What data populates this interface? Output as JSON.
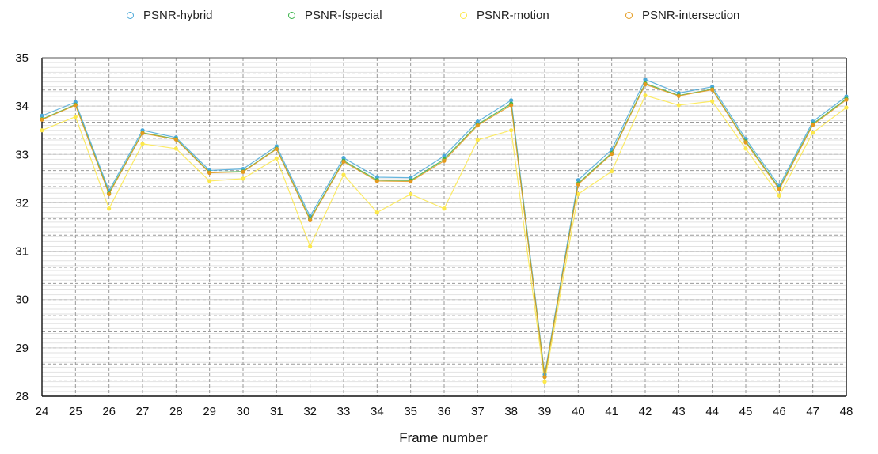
{
  "chart_data": {
    "type": "line",
    "title": "",
    "xlabel": "Frame number",
    "ylabel": "",
    "x": [
      24,
      25,
      26,
      27,
      28,
      29,
      30,
      31,
      32,
      33,
      34,
      35,
      36,
      37,
      38,
      39,
      40,
      41,
      42,
      43,
      44,
      45,
      46,
      47,
      48
    ],
    "ylim": [
      28,
      35
    ],
    "yticks": [
      28,
      29,
      30,
      31,
      32,
      33,
      34,
      35
    ],
    "grid": true,
    "legend_position": "top",
    "series": [
      {
        "name": "PSNR-hybrid",
        "color": "#4aa8d8",
        "values": [
          33.8,
          34.08,
          32.25,
          33.5,
          33.35,
          32.67,
          32.7,
          33.17,
          31.72,
          32.93,
          32.53,
          32.52,
          32.97,
          33.68,
          34.12,
          28.45,
          32.47,
          33.1,
          34.55,
          34.27,
          34.4,
          33.32,
          32.35,
          33.68,
          34.2
        ]
      },
      {
        "name": "PSNR-fspecial",
        "color": "#3cb44b",
        "values": [
          33.73,
          34.03,
          32.2,
          33.45,
          33.32,
          32.63,
          32.65,
          33.12,
          31.66,
          32.87,
          32.47,
          32.46,
          32.9,
          33.62,
          34.05,
          28.4,
          32.4,
          33.03,
          34.47,
          34.22,
          34.35,
          33.27,
          32.3,
          33.63,
          34.15
        ]
      },
      {
        "name": "PSNR-motion",
        "color": "#fce84a",
        "values": [
          33.5,
          33.78,
          31.88,
          33.22,
          33.12,
          32.45,
          32.5,
          32.92,
          31.1,
          32.58,
          31.8,
          32.18,
          31.88,
          33.3,
          33.5,
          28.3,
          32.18,
          32.65,
          34.22,
          34.02,
          34.1,
          33.12,
          32.15,
          33.45,
          33.97
        ]
      },
      {
        "name": "PSNR-intersection",
        "color": "#e49a1e",
        "values": [
          33.72,
          34.02,
          32.18,
          33.44,
          33.31,
          32.62,
          32.64,
          33.11,
          31.64,
          32.85,
          32.45,
          32.44,
          32.87,
          33.6,
          34.02,
          28.4,
          32.38,
          33.01,
          34.45,
          34.21,
          34.34,
          33.25,
          32.28,
          33.61,
          34.13
        ]
      }
    ]
  },
  "legend": {
    "items": [
      {
        "label": "PSNR-hybrid",
        "color": "#4aa8d8"
      },
      {
        "label": "PSNR-fspecial",
        "color": "#3cb44b"
      },
      {
        "label": "PSNR-motion",
        "color": "#fce84a"
      },
      {
        "label": "PSNR-intersection",
        "color": "#e49a1e"
      }
    ]
  }
}
